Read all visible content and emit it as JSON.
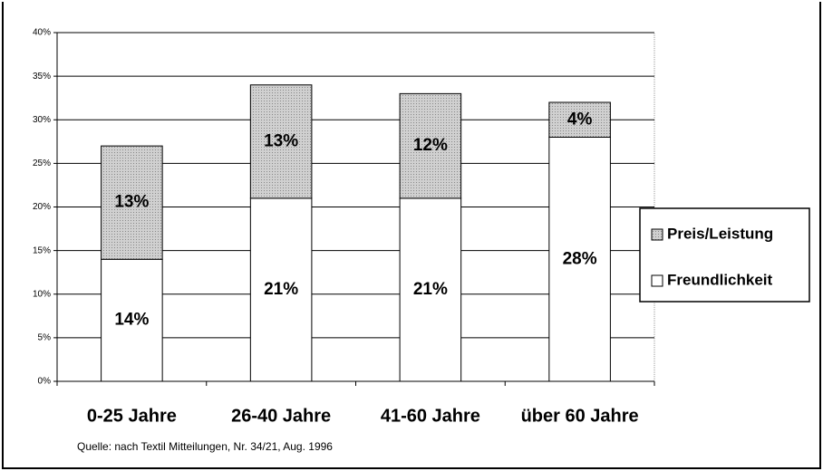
{
  "chart_data": {
    "type": "stacked_bar",
    "categories": [
      "0-25 Jahre",
      "26-40 Jahre",
      "41-60 Jahre",
      "über 60 Jahre"
    ],
    "series": [
      {
        "name": "Freundlichkeit",
        "color": "#ffffff",
        "values": [
          14,
          21,
          21,
          28
        ],
        "value_labels": [
          "14%",
          "21%",
          "21%",
          "28%"
        ]
      },
      {
        "name": "Preis/Leistung",
        "color": "#c8c8c8",
        "values": [
          13,
          13,
          12,
          4
        ],
        "value_labels": [
          "13%",
          "13%",
          "12%",
          "4%"
        ]
      }
    ],
    "ylim": [
      0,
      40
    ],
    "yticks": [
      {
        "value": 0,
        "label": "0%"
      },
      {
        "value": 5,
        "label": "5%"
      },
      {
        "value": 10,
        "label": "10%"
      },
      {
        "value": 15,
        "label": "15%"
      },
      {
        "value": 20,
        "label": "20%"
      },
      {
        "value": 25,
        "label": "25%"
      },
      {
        "value": 30,
        "label": "30%"
      },
      {
        "value": 35,
        "label": "35%"
      },
      {
        "value": 40,
        "label": "40%"
      }
    ],
    "grid": true,
    "legend": "right",
    "source": "Quelle: nach Textil Mitteilungen, Nr. 34/21, Aug. 1996"
  }
}
